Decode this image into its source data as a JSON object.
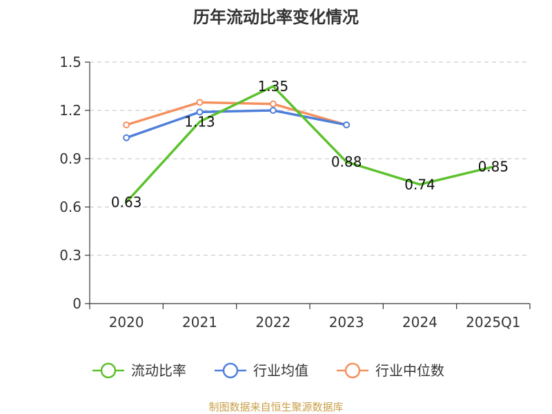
{
  "chart_data": {
    "type": "line",
    "title": "历年流动比率变化情况",
    "categories": [
      "2020",
      "2021",
      "2022",
      "2023",
      "2024",
      "2025Q1"
    ],
    "ylim": [
      0,
      1.5
    ],
    "yticks": [
      "0",
      "0.3",
      "0.6",
      "0.9",
      "1.2",
      "1.5"
    ],
    "grid": true,
    "legend_position": "bottom",
    "series": [
      {
        "name": "流动比率",
        "color": "#5cc12c",
        "values": [
          0.63,
          1.13,
          1.35,
          0.88,
          0.74,
          0.85
        ],
        "labels": [
          "0.63",
          "1.13",
          "1.35",
          "0.88",
          "0.74",
          "0.85"
        ]
      },
      {
        "name": "行业均值",
        "color": "#4f7fdb",
        "values": [
          1.03,
          1.19,
          1.2,
          1.11,
          null,
          null
        ]
      },
      {
        "name": "行业中位数",
        "color": "#f4915e",
        "values": [
          1.11,
          1.25,
          1.24,
          1.11,
          null,
          null
        ]
      }
    ]
  },
  "source_text": "制图数据来自恒生聚源数据库"
}
